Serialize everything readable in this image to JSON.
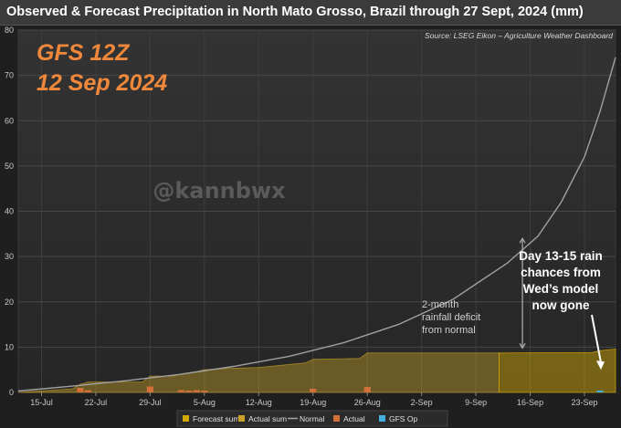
{
  "title": "Observed & Forecast Precipitation in North Mato Grosso, Brazil through 27 Sept, 2024 (mm)",
  "source": "Source: LSEG Eikon – Agriculture Weather Dashboard",
  "overlay": {
    "model_line1": "GFS 12Z",
    "model_line2": "12 Sep 2024",
    "watermark": "@kannbwx",
    "deficit_lines": [
      "2-month",
      "rainfall deficit",
      "from normal"
    ],
    "note_lines": [
      "Day 13-15 rain",
      "chances from",
      "Wed’s model",
      "now gone"
    ]
  },
  "colors": {
    "actual_sum": "#c9a227",
    "forecast_sum": "#d4aa00",
    "normal": "#a0a0a0",
    "actual": "#d2703a",
    "gfs_op": "#45b0e0",
    "model_text": "#f0883c"
  },
  "chart_data": {
    "type": "area",
    "title": "Observed & Forecast Precipitation in North Mato Grosso, Brazil through 27 Sept, 2024 (mm)",
    "xlabel": "",
    "ylabel": "",
    "x_range": [
      "2024-07-12",
      "2024-09-27"
    ],
    "ylim": [
      0,
      80
    ],
    "yticks": [
      0,
      10,
      20,
      30,
      40,
      50,
      60,
      70,
      80
    ],
    "xticks": [
      {
        "date": "2024-07-15",
        "label": "15-Jul"
      },
      {
        "date": "2024-07-22",
        "label": "22-Jul"
      },
      {
        "date": "2024-07-29",
        "label": "29-Jul"
      },
      {
        "date": "2024-08-05",
        "label": "5-Aug"
      },
      {
        "date": "2024-08-12",
        "label": "12-Aug"
      },
      {
        "date": "2024-08-19",
        "label": "19-Aug"
      },
      {
        "date": "2024-08-26",
        "label": "26-Aug"
      },
      {
        "date": "2024-09-02",
        "label": "2-Sep"
      },
      {
        "date": "2024-09-09",
        "label": "9-Sep"
      },
      {
        "date": "2024-09-16",
        "label": "16-Sep"
      },
      {
        "date": "2024-09-23",
        "label": "23-Sep"
      }
    ],
    "grid": true,
    "legend_position": "bottom",
    "legend": [
      "Forecast sum",
      "Actual sum",
      "Normal",
      "Actual",
      "GFS Op"
    ],
    "normal": [
      {
        "x": "2024-07-12",
        "y": 0.3
      },
      {
        "x": "2024-07-19",
        "y": 1.4
      },
      {
        "x": "2024-07-26",
        "y": 2.6
      },
      {
        "x": "2024-08-02",
        "y": 4.0
      },
      {
        "x": "2024-08-09",
        "y": 5.8
      },
      {
        "x": "2024-08-16",
        "y": 8.0
      },
      {
        "x": "2024-08-23",
        "y": 11.0
      },
      {
        "x": "2024-08-30",
        "y": 15.0
      },
      {
        "x": "2024-09-06",
        "y": 20.5
      },
      {
        "x": "2024-09-13",
        "y": 28.5
      },
      {
        "x": "2024-09-17",
        "y": 34.5
      },
      {
        "x": "2024-09-20",
        "y": 42.0
      },
      {
        "x": "2024-09-23",
        "y": 52.0
      },
      {
        "x": "2024-09-25",
        "y": 62.0
      },
      {
        "x": "2024-09-27",
        "y": 74.0
      }
    ],
    "actual_sum": [
      {
        "x": "2024-07-12",
        "y": 0
      },
      {
        "x": "2024-07-19",
        "y": 0.8
      },
      {
        "x": "2024-07-20",
        "y": 1.8
      },
      {
        "x": "2024-07-21",
        "y": 2.3
      },
      {
        "x": "2024-07-28",
        "y": 2.3
      },
      {
        "x": "2024-07-29",
        "y": 3.6
      },
      {
        "x": "2024-08-01",
        "y": 3.6
      },
      {
        "x": "2024-08-02",
        "y": 4.1
      },
      {
        "x": "2024-08-04",
        "y": 4.6
      },
      {
        "x": "2024-08-05",
        "y": 5.0
      },
      {
        "x": "2024-08-08",
        "y": 5.3
      },
      {
        "x": "2024-08-12",
        "y": 5.5
      },
      {
        "x": "2024-08-18",
        "y": 6.5
      },
      {
        "x": "2024-08-19",
        "y": 7.3
      },
      {
        "x": "2024-08-25",
        "y": 7.5
      },
      {
        "x": "2024-08-26",
        "y": 8.7
      },
      {
        "x": "2024-09-12",
        "y": 8.7
      }
    ],
    "forecast_sum": [
      {
        "x": "2024-09-12",
        "y": 8.7
      },
      {
        "x": "2024-09-24",
        "y": 8.8
      },
      {
        "x": "2024-09-25",
        "y": 9.2
      },
      {
        "x": "2024-09-27",
        "y": 9.6
      }
    ],
    "actual": [
      {
        "x": "2024-07-20",
        "y": 1.0
      },
      {
        "x": "2024-07-21",
        "y": 0.5
      },
      {
        "x": "2024-07-29",
        "y": 1.3
      },
      {
        "x": "2024-08-02",
        "y": 0.5
      },
      {
        "x": "2024-08-03",
        "y": 0.4
      },
      {
        "x": "2024-08-04",
        "y": 0.5
      },
      {
        "x": "2024-08-05",
        "y": 0.4
      },
      {
        "x": "2024-08-19",
        "y": 0.8
      },
      {
        "x": "2024-08-26",
        "y": 1.2
      }
    ],
    "gfs_op": [
      {
        "x": "2024-09-25",
        "y": 0.4
      }
    ]
  }
}
